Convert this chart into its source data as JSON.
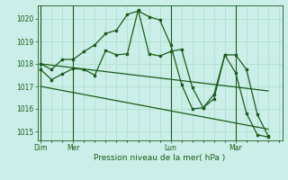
{
  "background_color": "#cceee8",
  "line_color": "#1a5c1a",
  "grid_color": "#aaddcc",
  "xlabel": "Pression niveau de la mer( hPa )",
  "ylim": [
    1014.6,
    1020.6
  ],
  "yticks": [
    1015,
    1016,
    1017,
    1018,
    1019,
    1020
  ],
  "day_labels": [
    "Dim",
    "Mer",
    "Lun",
    "Mar"
  ],
  "day_positions": [
    0,
    3,
    12,
    18
  ],
  "xlim": [
    -0.3,
    22.3
  ],
  "series": [
    {
      "x": [
        0,
        1,
        2,
        3,
        4,
        5,
        6,
        7,
        8,
        9,
        10,
        11,
        12,
        13,
        14,
        15,
        16,
        17,
        18,
        19,
        20,
        21
      ],
      "y": [
        1018.0,
        1017.75,
        1018.2,
        1018.2,
        1018.55,
        1018.85,
        1019.35,
        1019.5,
        1020.2,
        1020.35,
        1020.1,
        1019.95,
        1018.85,
        1017.1,
        1016.0,
        1016.05,
        1016.45,
        1018.4,
        1018.4,
        1017.75,
        1015.75,
        1014.8
      ]
    },
    {
      "x": [
        0,
        1,
        2,
        3,
        4,
        5,
        6,
        7,
        8,
        9,
        10,
        11,
        12,
        13,
        14,
        15,
        16,
        17,
        18,
        19,
        20,
        21
      ],
      "y": [
        1017.75,
        1017.3,
        1017.55,
        1017.8,
        1017.75,
        1017.5,
        1018.6,
        1018.4,
        1018.45,
        1020.4,
        1018.45,
        1018.35,
        1018.55,
        1018.65,
        1016.95,
        1016.05,
        1016.65,
        1018.4,
        1017.6,
        1015.8,
        1014.85,
        1014.75
      ]
    },
    {
      "x": [
        0,
        21
      ],
      "y": [
        1017.0,
        1015.1
      ]
    },
    {
      "x": [
        0,
        21
      ],
      "y": [
        1018.0,
        1016.8
      ]
    }
  ]
}
